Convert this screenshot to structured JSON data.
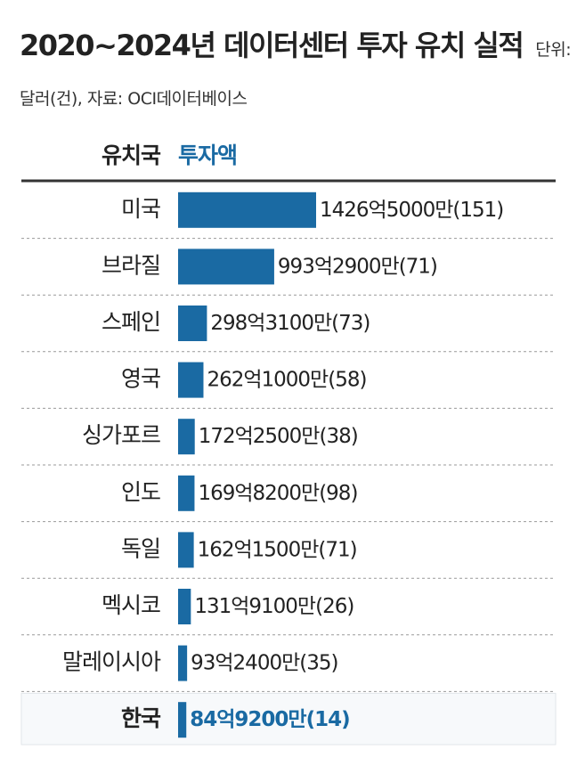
{
  "chart_data": {
    "type": "bar",
    "orientation": "horizontal",
    "title": "2020~2024년 데이터센터 투자 유치 실적",
    "subtitle": "단위: 달러(건), 자료: OCI데이터베이스",
    "category_header": "유치국",
    "value_header": "투자액",
    "categories": [
      "미국",
      "브라질",
      "스페인",
      "영국",
      "싱가포르",
      "인도",
      "독일",
      "멕시코",
      "말레이시아",
      "한국"
    ],
    "values": [
      142650000000,
      99329000000,
      29831000000,
      26210000000,
      17225000000,
      16982000000,
      16215000000,
      13191000000,
      9324000000,
      8492000000
    ],
    "value_labels": [
      "1426억5000만",
      "993억2900만",
      "298억3100만",
      "262억1000만",
      "172억2500만",
      "169억8200만",
      "162억1500만",
      "131억9100만",
      "93억2400만",
      "84억9200만"
    ],
    "counts": [
      151,
      71,
      73,
      58,
      38,
      98,
      71,
      26,
      35,
      14
    ],
    "count_labels": [
      "(151)",
      "(71)",
      "(73)",
      "(58)",
      "(38)",
      "(98)",
      "(71)",
      "(26)",
      "(35)",
      "(14)"
    ],
    "color": "#1a6aa3",
    "highlight": 9
  }
}
